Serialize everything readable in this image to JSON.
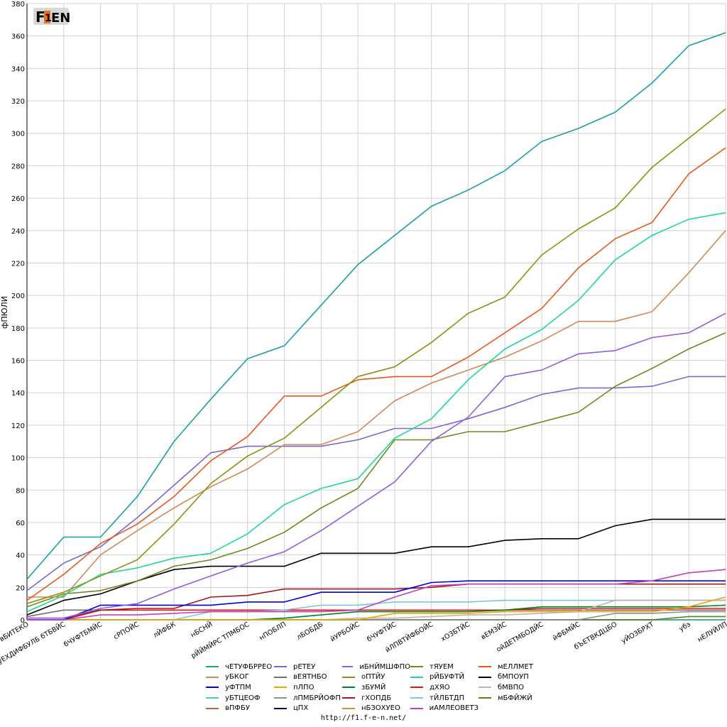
{
  "logo": {
    "text": "F1EN",
    "colors": [
      "#7a7a7a",
      "#e8701a",
      "#5a5a5a"
    ]
  },
  "footer": {
    "url": "http://f1.f-e-n.net/"
  },
  "chart_data": {
    "type": "line",
    "ylabel": "фПЮЛИ",
    "xlabel": "",
    "ylim": [
      0,
      380
    ],
    "yticks": [
      0,
      20,
      40,
      60,
      80,
      100,
      120,
      140,
      160,
      180,
      200,
      220,
      240,
      260,
      280,
      300,
      320,
      340,
      360,
      380
    ],
    "grid": true,
    "legend_position": "bottom",
    "categories": [
      "вБИТЕКО",
      "уЕХДИФБУЛБ бТБВЙС",
      "бЧУФТБМЙС",
      "сРПОЙС",
      "лЙФБК",
      "нБСНЙ",
      "рЙЙМЙРС ТПМБОС",
      "нПОБЛП",
      "лБОБДБ",
      "йУРБОЙС",
      "бЧУФТЙС",
      "йЛПВТЙФБОЙС",
      "хОЗБТЙС",
      "вЕМЗЙС",
      "ойДЕТМБОДЙС",
      "йФБМЙС",
      "бЪЕТВКДЦБО",
      "уЙОЗБРХТ",
      "убэ",
      "нЕЛУЙЛП"
    ],
    "series": [
      {
        "name": "чЕТУФБРРЕО",
        "color": "#1aa0a0",
        "values": [
          25,
          51,
          51,
          76,
          110,
          136,
          161,
          169,
          194,
          219,
          237,
          255,
          265,
          277,
          295,
          303,
          313,
          331,
          354,
          362
        ]
      },
      {
        "name": "рЕТЕУ",
        "color": "#7b68d0",
        "values": [
          18,
          35,
          45,
          63,
          83,
          103,
          107,
          107,
          107,
          111,
          118,
          118,
          124,
          131,
          139,
          143,
          143,
          144,
          150,
          150
        ]
      },
      {
        "name": "иБНЙМШФПО",
        "color": "#9060d8",
        "values": [
          1,
          1,
          7,
          10,
          19,
          27,
          35,
          42,
          55,
          70,
          85,
          110,
          125,
          150,
          154,
          164,
          166,
          174,
          177,
          189
        ]
      },
      {
        "name": "тЯУЕМ",
        "color": "#6a8c1e",
        "values": [
          8,
          16,
          18,
          24,
          33,
          37,
          44,
          54,
          69,
          81,
          111,
          111,
          116,
          116,
          122,
          128,
          144,
          155,
          167,
          177
        ]
      },
      {
        "name": "мЕЛЛМЕТ",
        "color": "#e8581a",
        "values": [
          12,
          28,
          47,
          59,
          76,
          98,
          113,
          138,
          138,
          148,
          150,
          150,
          162,
          177,
          192,
          217,
          235,
          245,
          275,
          291
        ]
      },
      {
        "name": "уБКОГ",
        "color": "#d0885a",
        "values": [
          14,
          14,
          40,
          55,
          69,
          82,
          93,
          108,
          108,
          116,
          135,
          146,
          154,
          162,
          172,
          184,
          184,
          190,
          214,
          240
        ]
      },
      {
        "name": "оПТЙУ",
        "color": "#909010",
        "values": [
          10,
          17,
          27,
          37,
          59,
          84,
          101,
          112,
          131,
          150,
          156,
          171,
          189,
          199,
          225,
          241,
          254,
          279,
          297,
          315
        ]
      },
      {
        "name": "рЙБУФТЙ",
        "color": "#20d890",
        "values": [
          5,
          15,
          28,
          32,
          38,
          41,
          53,
          71,
          81,
          87,
          112,
          124,
          148,
          167,
          179,
          197,
          222,
          237,
          247,
          251
        ]
      },
      {
        "name": "бМПОУП",
        "color": "#000000",
        "values": [
          3,
          12,
          16,
          24,
          31,
          33,
          33,
          33,
          41,
          41,
          41,
          45,
          45,
          49,
          50,
          50,
          58,
          62,
          62,
          62
        ]
      },
      {
        "name": "уФТПМ",
        "color": "#0000e0",
        "values": [
          0,
          0,
          9,
          9,
          9,
          9,
          11,
          11,
          17,
          17,
          17,
          23,
          24,
          24,
          24,
          24,
          24,
          24,
          24,
          24
        ]
      },
      {
        "name": "иАМЛЕОВЕТЗ",
        "color": "#c040c0",
        "values": [
          0,
          0,
          3,
          3,
          4,
          5,
          5,
          5,
          5,
          6,
          14,
          21,
          22,
          22,
          22,
          22,
          22,
          24,
          29,
          31
        ]
      },
      {
        "name": "гХОПДБ",
        "color": "#a01818",
        "values": [
          1,
          1,
          6,
          7,
          7,
          14,
          15,
          19,
          19,
          19,
          19,
          20,
          22,
          22,
          22,
          22,
          22,
          22,
          22,
          22
        ]
      },
      {
        "name": "тЙЛБТДП",
        "color": "#80c8d0",
        "values": [
          0,
          0,
          0,
          0,
          0,
          5,
          5,
          6,
          9,
          9,
          11,
          11,
          11,
          12,
          12,
          12,
          12,
          12,
          12,
          12
        ]
      },
      {
        "name": "дХЯО",
        "color": "#e01818",
        "values": [
          0,
          0,
          6,
          6,
          6,
          6,
          6,
          6,
          6,
          6,
          6,
          6,
          6,
          6,
          7,
          7,
          7,
          7,
          7,
          7
        ]
      },
      {
        "name": "вЕЯТНБО",
        "color": "#707070",
        "values": [
          2,
          6,
          6,
          6,
          6,
          6,
          6,
          6,
          6,
          6,
          6,
          6,
          6,
          6,
          6,
          6,
          6,
          6,
          6,
          6
        ]
      },
      {
        "name": "зБУМЙ",
        "color": "#008020",
        "values": [
          0,
          0,
          0,
          0,
          0,
          0,
          0,
          1,
          3,
          5,
          5,
          5,
          5,
          6,
          8,
          8,
          8,
          8,
          8,
          9
        ]
      },
      {
        "name": "пЛПО",
        "color": "#e8a800",
        "values": [
          0,
          0,
          0,
          0,
          0,
          0,
          0,
          0,
          0,
          0,
          4,
          4,
          4,
          5,
          5,
          5,
          5,
          5,
          8,
          14
        ]
      },
      {
        "name": "бМВПО",
        "color": "#c8b0a8",
        "values": [
          0,
          0,
          0,
          0,
          0,
          0,
          0,
          0,
          0,
          1,
          1,
          2,
          3,
          3,
          4,
          5,
          12,
          12,
          12,
          12
        ]
      },
      {
        "name": "лПМБРЙОФП",
        "color": "#909090",
        "values": [
          0,
          0,
          0,
          0,
          0,
          0,
          0,
          0,
          0,
          0,
          0,
          0,
          0,
          0,
          0,
          0,
          4,
          4,
          5,
          5
        ]
      },
      {
        "name": "нБЗОХУЕО",
        "color": "#d09030",
        "values": [
          0,
          0,
          0,
          0,
          0,
          0,
          0,
          0,
          0,
          0,
          0,
          0,
          0,
          0,
          0,
          0,
          0,
          0,
          0,
          0
        ]
      },
      {
        "name": "вПФБУ",
        "color": "#c06830",
        "values": [
          0,
          0,
          0,
          0,
          0,
          0,
          0,
          0,
          0,
          0,
          0,
          0,
          0,
          0,
          0,
          0,
          0,
          0,
          0,
          0
        ]
      },
      {
        "name": "цПХ",
        "color": "#000060",
        "values": [
          0,
          0,
          0,
          0,
          0,
          0,
          0,
          0,
          0,
          0,
          0,
          0,
          0,
          0,
          0,
          0,
          0,
          0,
          0,
          0
        ]
      },
      {
        "name": "уБТЦЕОФ",
        "color": "#40d0b0",
        "values": [
          0,
          0,
          0,
          0,
          0,
          0,
          0,
          0,
          0,
          0,
          0,
          0,
          0,
          0,
          0,
          0,
          0,
          0,
          0,
          0
        ]
      },
      {
        "name": "мБФЙЖЙ",
        "color": "#608020",
        "values": [
          0,
          0,
          0,
          0,
          0,
          0,
          0,
          0,
          0,
          0,
          0,
          0,
          0,
          0,
          0,
          0,
          0,
          0,
          2,
          2
        ]
      }
    ],
    "legend_order": [
      "чЕТУФБРРЕО",
      "уБКОГ",
      "уФТПМ",
      "уБТЦЕОФ",
      "вПФБУ",
      "рЕТЕУ",
      "вЕЯТНБО",
      "пЛПО",
      "лПМБРЙОФП",
      "цПХ",
      "иБНЙМШФПО",
      "оПТЙУ",
      "зБУМЙ",
      "гХОПДБ",
      "нБЗОХУЕО",
      "тЯУЕМ",
      "рЙБУФТЙ",
      "дХЯО",
      "тЙЛБТДП",
      "иАМЛЕОВЕТЗ",
      "мЕЛЛМЕТ",
      "бМПОУП",
      "бМВПО",
      "мБФЙЖЙ"
    ]
  }
}
